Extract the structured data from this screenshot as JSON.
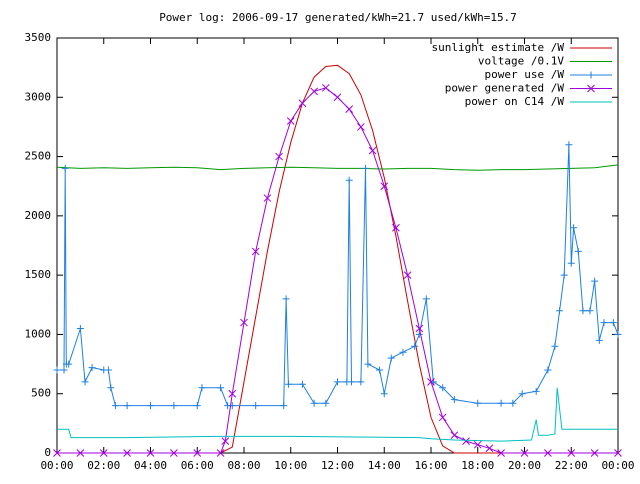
{
  "chart_data": {
    "type": "line",
    "title": "Power log: 2006-09-17 generated/kWh=21.7 used/kWh=15.7",
    "xlim": [
      0,
      24
    ],
    "ylim": [
      0,
      3500
    ],
    "xticks": [
      {
        "value": 0,
        "label": "00:00"
      },
      {
        "value": 2,
        "label": "02:00"
      },
      {
        "value": 4,
        "label": "04:00"
      },
      {
        "value": 6,
        "label": "06:00"
      },
      {
        "value": 8,
        "label": "08:00"
      },
      {
        "value": 10,
        "label": "10:00"
      },
      {
        "value": 12,
        "label": "12:00"
      },
      {
        "value": 14,
        "label": "14:00"
      },
      {
        "value": 16,
        "label": "16:00"
      },
      {
        "value": 18,
        "label": "18:00"
      },
      {
        "value": 20,
        "label": "20:00"
      },
      {
        "value": 22,
        "label": "22:00"
      },
      {
        "value": 24,
        "label": "00:00"
      }
    ],
    "yticks": [
      0,
      500,
      1000,
      1500,
      2000,
      2500,
      3000,
      3500
    ],
    "legend": "upper right",
    "series": [
      {
        "name": "sunlight estimate /W",
        "color": "#cc0000",
        "marker": "none",
        "x": [
          0,
          7,
          7.5,
          8,
          8.5,
          9,
          9.5,
          10,
          10.5,
          11,
          11.5,
          12,
          12.5,
          13,
          13.5,
          14,
          14.5,
          15,
          15.5,
          16,
          16.5,
          17,
          24
        ],
        "values": [
          0,
          0,
          50,
          600,
          1150,
          1700,
          2200,
          2620,
          2950,
          3170,
          3260,
          3270,
          3200,
          3020,
          2720,
          2320,
          1830,
          1280,
          750,
          300,
          60,
          0,
          0
        ]
      },
      {
        "name": "voltage /0.1V",
        "color": "#009900",
        "marker": "none",
        "x": [
          0,
          1,
          2,
          3,
          4,
          5,
          6,
          7,
          8,
          9,
          10,
          11,
          12,
          13,
          14,
          15,
          16,
          17,
          18,
          19,
          20,
          21,
          22,
          23,
          24
        ],
        "values": [
          2410,
          2400,
          2405,
          2400,
          2405,
          2410,
          2405,
          2390,
          2400,
          2405,
          2410,
          2405,
          2400,
          2400,
          2395,
          2400,
          2400,
          2390,
          2385,
          2390,
          2390,
          2395,
          2400,
          2405,
          2430
        ]
      },
      {
        "name": "power use /W",
        "color": "#2080e0",
        "marker": "plus",
        "x": [
          0,
          0.3,
          0.35,
          0.4,
          0.5,
          1.0,
          1.2,
          1.5,
          2.0,
          2.2,
          2.3,
          2.5,
          3,
          4,
          5,
          6,
          6.2,
          7.0,
          7.3,
          7.5,
          8.5,
          9.7,
          9.8,
          9.9,
          10.5,
          11,
          11.5,
          12,
          12.4,
          12.5,
          12.6,
          13,
          13.2,
          13.3,
          13.8,
          14.0,
          14.3,
          14.8,
          15.3,
          15.5,
          15.8,
          16.1,
          16.5,
          17,
          18,
          19,
          19.5,
          19.9,
          20.5,
          21,
          21.3,
          21.5,
          21.7,
          21.9,
          22,
          22.1,
          22.3,
          22.5,
          22.8,
          23,
          23.2,
          23.4,
          23.8,
          24
        ],
        "values": [
          700,
          700,
          2400,
          750,
          750,
          1050,
          600,
          720,
          700,
          700,
          550,
          400,
          400,
          400,
          400,
          400,
          550,
          550,
          400,
          400,
          400,
          400,
          1300,
          580,
          580,
          420,
          420,
          600,
          600,
          2300,
          600,
          600,
          2400,
          750,
          700,
          500,
          800,
          850,
          900,
          1000,
          1300,
          600,
          550,
          450,
          420,
          420,
          420,
          500,
          520,
          700,
          900,
          1200,
          1500,
          2600,
          1600,
          1900,
          1700,
          1200,
          1200,
          1450,
          950,
          1100,
          1100,
          1000
        ]
      },
      {
        "name": "power generated /W",
        "color": "#a000e0",
        "marker": "cross",
        "x": [
          0,
          1,
          2,
          3,
          4,
          5,
          6,
          7,
          7.2,
          7.5,
          8,
          8.5,
          9,
          9.5,
          10,
          10.5,
          11,
          11.5,
          12,
          12.5,
          13,
          13.5,
          14,
          14.5,
          15,
          15.5,
          16,
          16.5,
          17,
          17.5,
          18,
          18.5,
          19,
          20,
          21,
          22,
          23,
          24
        ],
        "values": [
          0,
          0,
          0,
          0,
          0,
          0,
          0,
          0,
          100,
          500,
          1100,
          1700,
          2150,
          2500,
          2800,
          2950,
          3050,
          3080,
          3000,
          2900,
          2750,
          2550,
          2250,
          1900,
          1500,
          1050,
          600,
          300,
          150,
          100,
          70,
          40,
          0,
          0,
          0,
          0,
          0,
          0
        ]
      },
      {
        "name": "power on C14 /W",
        "color": "#00c0c0",
        "marker": "none",
        "x": [
          0,
          0.5,
          0.6,
          3,
          6.8,
          10,
          15.5,
          16,
          17,
          19,
          20.3,
          20.5,
          20.6,
          21,
          21.3,
          21.4,
          21.6,
          24
        ],
        "values": [
          200,
          200,
          130,
          130,
          140,
          140,
          130,
          120,
          110,
          100,
          110,
          280,
          150,
          150,
          160,
          550,
          200,
          200
        ]
      }
    ]
  }
}
